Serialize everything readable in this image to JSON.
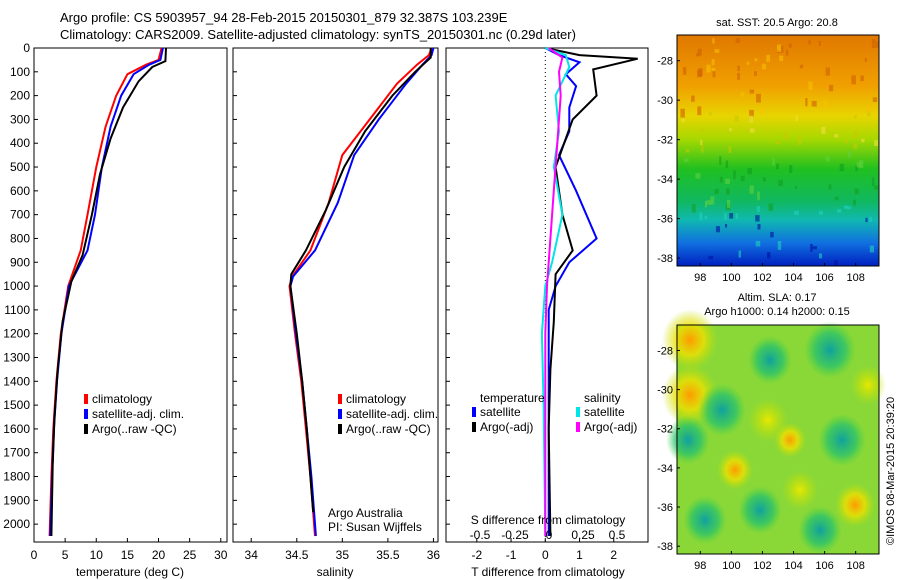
{
  "title": {
    "line1": "Argo profile: CS 5903957_94 28-Feb-2015 20150301_879 32.387S 103.239E",
    "line2": "Climatology: CARS2009. Satellite-adjusted climatology: synTS_20150301.nc (0.29d later)"
  },
  "colors": {
    "climatology": "#ff0000",
    "satellite": "#0000ff",
    "argo": "#000000",
    "sal_sat": "#00e5e5",
    "sal_argo": "#ff00ff"
  },
  "chart_data": [
    {
      "type": "line",
      "panel": "temperature",
      "xlabel": "temperature (deg C)",
      "xlim": [
        0,
        31
      ],
      "xticks": [
        0,
        5,
        10,
        15,
        20,
        25,
        30
      ],
      "ylim": [
        2075,
        0
      ],
      "yticks": [
        0,
        100,
        200,
        300,
        400,
        500,
        600,
        700,
        800,
        900,
        1000,
        1100,
        1200,
        1300,
        1400,
        1500,
        1600,
        1700,
        1800,
        1900,
        2000
      ],
      "legend": [
        "climatology",
        "satellite-adj. clim.",
        "Argo(..raw -QC)"
      ],
      "series": [
        {
          "name": "climatology",
          "color": "#ff0000",
          "points": [
            [
              20.5,
              0
            ],
            [
              20,
              50
            ],
            [
              18,
              70
            ],
            [
              15,
              110
            ],
            [
              13.2,
              200
            ],
            [
              11.5,
              330
            ],
            [
              10,
              500
            ],
            [
              8.6,
              700
            ],
            [
              7.5,
              850
            ],
            [
              5.5,
              1000
            ],
            [
              4.3,
              1200
            ],
            [
              3.6,
              1400
            ],
            [
              3.1,
              1600
            ],
            [
              2.8,
              1800
            ],
            [
              2.5,
              2050
            ]
          ]
        },
        {
          "name": "satellite-adj. clim.",
          "color": "#0000ff",
          "points": [
            [
              20.7,
              0
            ],
            [
              20.3,
              50
            ],
            [
              18.5,
              70
            ],
            [
              16,
              110
            ],
            [
              14,
              200
            ],
            [
              12.3,
              330
            ],
            [
              10.9,
              500
            ],
            [
              9.8,
              700
            ],
            [
              8.6,
              850
            ],
            [
              5.6,
              1000
            ],
            [
              4.4,
              1200
            ],
            [
              3.7,
              1400
            ],
            [
              3.2,
              1600
            ],
            [
              2.9,
              1800
            ],
            [
              2.6,
              2050
            ]
          ]
        },
        {
          "name": "Argo(..raw -QC)",
          "color": "#000000",
          "points": [
            [
              21.2,
              0
            ],
            [
              21.1,
              55
            ],
            [
              19,
              80
            ],
            [
              16.8,
              140
            ],
            [
              14.3,
              250
            ],
            [
              12.3,
              380
            ],
            [
              10.6,
              530
            ],
            [
              9.3,
              700
            ],
            [
              7.8,
              870
            ],
            [
              6,
              980
            ],
            [
              4.6,
              1150
            ],
            [
              3.8,
              1350
            ],
            [
              3.3,
              1550
            ],
            [
              3,
              1750
            ],
            [
              2.8,
              2050
            ]
          ]
        }
      ]
    },
    {
      "type": "line",
      "panel": "salinity",
      "xlabel": "salinity",
      "xlim": [
        33.8,
        36.05
      ],
      "xticks": [
        34,
        34.5,
        35,
        35.5,
        36
      ],
      "ylim": [
        2075,
        0
      ],
      "legend": [
        "climatology",
        "satellite-adj. clim.",
        "Argo(..raw -QC)"
      ],
      "series": [
        {
          "name": "climatology",
          "color": "#ff0000",
          "points": [
            [
              35.98,
              0
            ],
            [
              35.95,
              30
            ],
            [
              35.82,
              70
            ],
            [
              35.6,
              150
            ],
            [
              35.3,
              300
            ],
            [
              35.0,
              450
            ],
            [
              34.85,
              650
            ],
            [
              34.65,
              850
            ],
            [
              34.45,
              960
            ],
            [
              34.42,
              1000
            ],
            [
              34.48,
              1200
            ],
            [
              34.55,
              1400
            ],
            [
              34.6,
              1600
            ],
            [
              34.65,
              1800
            ],
            [
              34.7,
              2050
            ]
          ]
        },
        {
          "name": "satellite-adj. clim.",
          "color": "#0000ff",
          "points": [
            [
              36.0,
              0
            ],
            [
              35.98,
              30
            ],
            [
              35.88,
              70
            ],
            [
              35.7,
              150
            ],
            [
              35.4,
              300
            ],
            [
              35.13,
              450
            ],
            [
              34.95,
              650
            ],
            [
              34.7,
              850
            ],
            [
              34.46,
              960
            ],
            [
              34.43,
              1000
            ],
            [
              34.49,
              1200
            ],
            [
              34.56,
              1400
            ],
            [
              34.61,
              1600
            ],
            [
              34.66,
              1800
            ],
            [
              34.71,
              2050
            ]
          ]
        },
        {
          "name": "Argo(..raw -QC)",
          "color": "#000000",
          "points": [
            [
              35.97,
              0
            ],
            [
              35.97,
              40
            ],
            [
              35.8,
              100
            ],
            [
              35.55,
              200
            ],
            [
              35.25,
              350
            ],
            [
              35.02,
              500
            ],
            [
              34.82,
              680
            ],
            [
              34.6,
              850
            ],
            [
              34.44,
              950
            ],
            [
              34.43,
              1000
            ],
            [
              34.5,
              1200
            ],
            [
              34.56,
              1400
            ],
            [
              34.61,
              1600
            ],
            [
              34.65,
              1800
            ],
            [
              34.68,
              1950
            ]
          ]
        }
      ],
      "annotation": [
        "Argo Australia",
        "PI: Susan Wijffels"
      ]
    },
    {
      "type": "line",
      "panel": "difference",
      "xlabel_top": "S difference from climatology",
      "xticks_top": [
        "-0.5",
        "-0.25",
        "0",
        "0.25",
        "0.5"
      ],
      "xlabel": "T difference from climatology",
      "xlim": [
        -2.9,
        3.0
      ],
      "xticks": [
        -2,
        -1,
        0,
        1,
        2
      ],
      "ylim": [
        2075,
        0
      ],
      "legend_groups": [
        {
          "title": "temperature",
          "items": [
            "satellite",
            "Argo(-adj)"
          ]
        },
        {
          "title": "salinity",
          "items": [
            "satellite",
            "Argo(-adj)"
          ]
        }
      ],
      "series": [
        {
          "name": "temperature satellite",
          "color": "#0000ff",
          "points": [
            [
              0,
              0
            ],
            [
              0.4,
              30
            ],
            [
              1.0,
              60
            ],
            [
              0.6,
              110
            ],
            [
              0.9,
              160
            ],
            [
              0.7,
              250
            ],
            [
              0.7,
              350
            ],
            [
              0.4,
              450
            ],
            [
              0.9,
              600
            ],
            [
              1.5,
              800
            ],
            [
              0.7,
              900
            ],
            [
              0.3,
              1000
            ],
            [
              0.1,
              1100
            ],
            [
              0.1,
              1300
            ],
            [
              0.1,
              1600
            ],
            [
              0.1,
              2050
            ]
          ]
        },
        {
          "name": "temperature Argo(-adj)",
          "color": "#000000",
          "points": [
            [
              0,
              0
            ],
            [
              1,
              30
            ],
            [
              2.7,
              45
            ],
            [
              1.4,
              90
            ],
            [
              1.5,
              200
            ],
            [
              0.8,
              300
            ],
            [
              0.3,
              500
            ],
            [
              0.5,
              700
            ],
            [
              0.8,
              850
            ],
            [
              0.3,
              950
            ],
            [
              0.25,
              1150
            ],
            [
              0.15,
              1350
            ],
            [
              0.1,
              1600
            ],
            [
              0.15,
              2050
            ]
          ]
        },
        {
          "name": "salinity satellite",
          "color": "#00e5e5",
          "points": [
            [
              0,
              0
            ],
            [
              0.6,
              30
            ],
            [
              0.7,
              80
            ],
            [
              0.3,
              200
            ],
            [
              0.4,
              350
            ],
            [
              0.25,
              500
            ],
            [
              0.5,
              700
            ],
            [
              0.2,
              900
            ],
            [
              0,
              1000
            ],
            [
              -0.1,
              1200
            ],
            [
              -0.05,
              1500
            ],
            [
              0,
              2050
            ]
          ]
        },
        {
          "name": "salinity Argo(-adj)",
          "color": "#ff00ff",
          "points": [
            [
              0.1,
              0
            ],
            [
              0.5,
              40
            ],
            [
              0.4,
              100
            ],
            [
              0.45,
              200
            ],
            [
              0.35,
              400
            ],
            [
              0.25,
              600
            ],
            [
              0.15,
              800
            ],
            [
              0.05,
              1000
            ],
            [
              0,
              1200
            ],
            [
              0,
              2050
            ]
          ]
        }
      ]
    },
    {
      "type": "heatmap",
      "panel": "sst_map",
      "title": "sat. SST: 20.5 Argo: 20.8",
      "xlim": [
        96.5,
        109.5
      ],
      "xticks": [
        98,
        100,
        102,
        104,
        106,
        108
      ],
      "ylim": [
        -38.4,
        -26.7
      ],
      "yticks": [
        -28,
        -30,
        -32,
        -34,
        -36,
        -38
      ]
    },
    {
      "type": "heatmap",
      "panel": "sla_map",
      "title": "Altim. SLA: 0.17",
      "subtitle": "Argo h1000: 0.14 h2000: 0.15",
      "xlim": [
        96.5,
        109.5
      ],
      "xticks": [
        98,
        100,
        102,
        104,
        106,
        108
      ],
      "ylim": [
        -38.4,
        -26.7
      ],
      "yticks": [
        -28,
        -30,
        -32,
        -34,
        -36,
        -38
      ]
    }
  ],
  "credit": "©IMOS 08-Mar-2015 20:39:20"
}
